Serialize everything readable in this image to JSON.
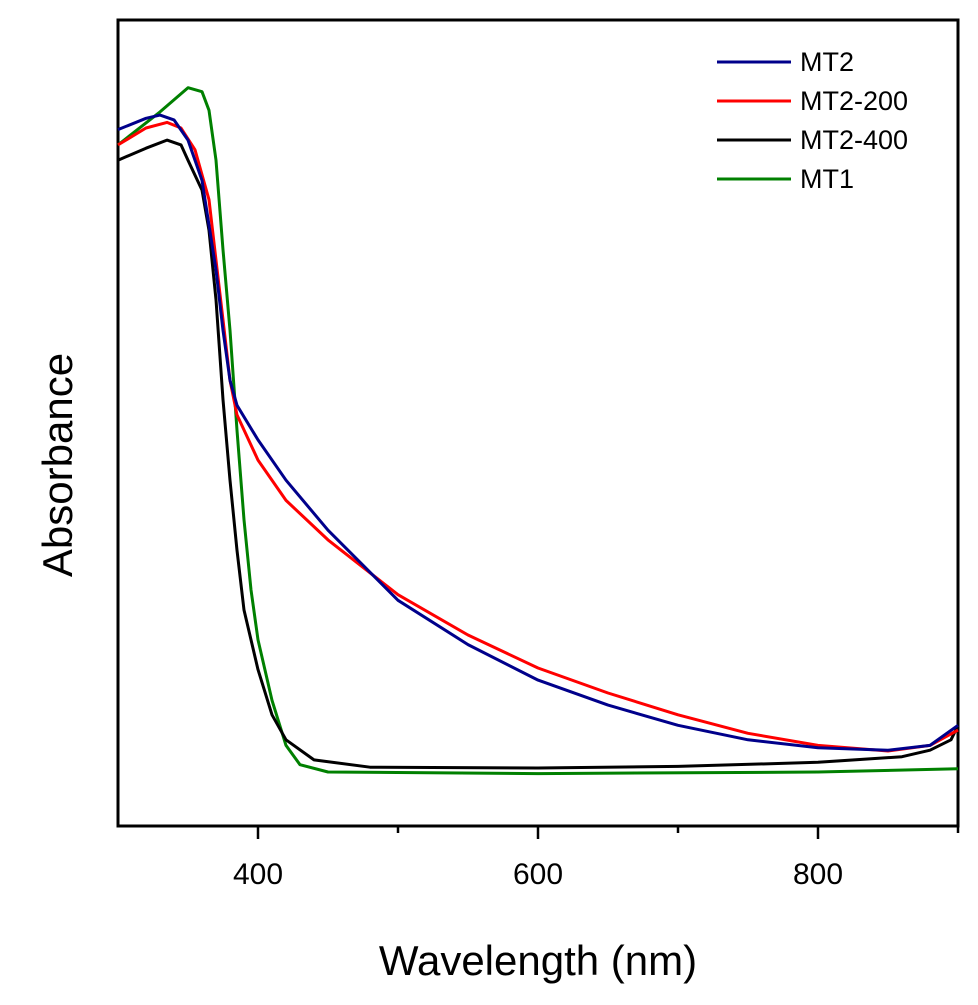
{
  "chart_data": {
    "type": "line",
    "title": "",
    "xlabel": "Wavelength (nm)",
    "ylabel": "Absorbance",
    "xlim": [
      300,
      900
    ],
    "ylim": [
      0,
      1
    ],
    "x_ticks": [
      400,
      600,
      800
    ],
    "x_minor_ticks": [
      500,
      700,
      900
    ],
    "y_ticks_shown": false,
    "grid": false,
    "legend_position": "top-right",
    "series": [
      {
        "name": "MT2",
        "color": "#00008b",
        "x": [
          300,
          320,
          330,
          340,
          350,
          360,
          370,
          375,
          380,
          385,
          400,
          420,
          450,
          500,
          550,
          600,
          650,
          700,
          750,
          800,
          850,
          880,
          900
        ],
        "y": [
          0.864,
          0.878,
          0.882,
          0.876,
          0.851,
          0.801,
          0.69,
          0.615,
          0.553,
          0.522,
          0.479,
          0.429,
          0.367,
          0.28,
          0.225,
          0.181,
          0.15,
          0.125,
          0.107,
          0.097,
          0.094,
          0.1,
          0.125
        ]
      },
      {
        "name": "MT2-200",
        "color": "#ff0000",
        "x": [
          300,
          320,
          335,
          345,
          355,
          365,
          370,
          375,
          380,
          385,
          400,
          420,
          450,
          500,
          550,
          600,
          650,
          700,
          750,
          800,
          850,
          880,
          900
        ],
        "y": [
          0.845,
          0.866,
          0.873,
          0.866,
          0.839,
          0.777,
          0.702,
          0.628,
          0.553,
          0.51,
          0.454,
          0.404,
          0.355,
          0.287,
          0.237,
          0.196,
          0.165,
          0.138,
          0.115,
          0.1,
          0.093,
          0.1,
          0.119
        ]
      },
      {
        "name": "MT2-400",
        "color": "#000000",
        "x": [
          300,
          320,
          335,
          345,
          350,
          360,
          365,
          370,
          375,
          380,
          385,
          390,
          400,
          410,
          420,
          440,
          480,
          600,
          700,
          800,
          860,
          880,
          895,
          900
        ],
        "y": [
          0.826,
          0.841,
          0.851,
          0.845,
          0.826,
          0.789,
          0.739,
          0.653,
          0.529,
          0.429,
          0.342,
          0.268,
          0.194,
          0.138,
          0.107,
          0.082,
          0.073,
          0.072,
          0.074,
          0.079,
          0.086,
          0.094,
          0.107,
          0.125
        ]
      },
      {
        "name": "MT1",
        "color": "#008000",
        "x": [
          300,
          330,
          350,
          360,
          365,
          370,
          375,
          380,
          385,
          390,
          395,
          400,
          410,
          420,
          430,
          450,
          600,
          800,
          900
        ],
        "y": [
          0.845,
          0.886,
          0.916,
          0.911,
          0.888,
          0.826,
          0.715,
          0.615,
          0.491,
          0.38,
          0.293,
          0.231,
          0.156,
          0.1,
          0.076,
          0.067,
          0.065,
          0.067,
          0.071
        ]
      }
    ]
  }
}
